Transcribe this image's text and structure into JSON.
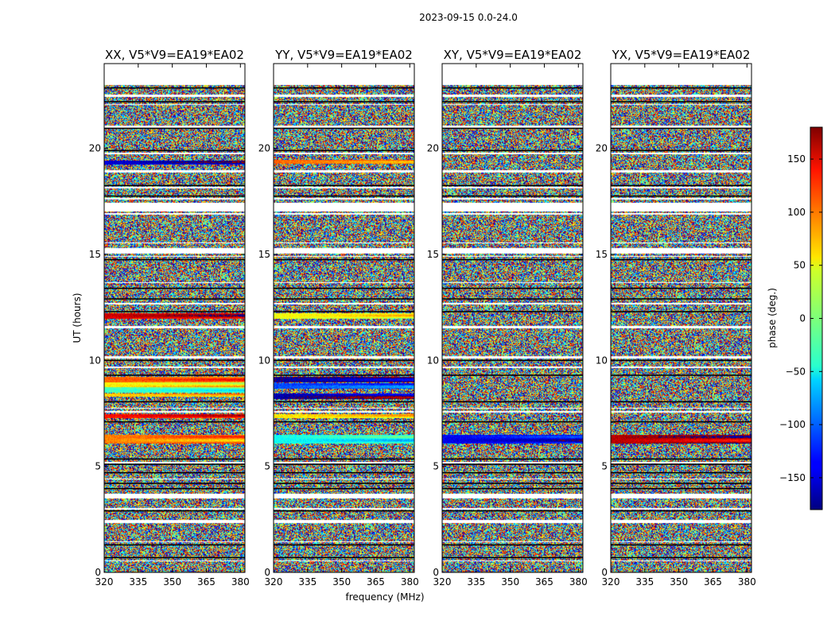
{
  "chart_data": {
    "type": "heatmap",
    "suptitle": "2023-09-15 0.0-24.0",
    "xlabel": "frequency (MHz)",
    "ylabel": "UT (hours)",
    "xlim": [
      320,
      382
    ],
    "ylim": [
      0,
      24
    ],
    "xticks": [
      320,
      335,
      350,
      365,
      380
    ],
    "yticks": [
      0,
      5,
      10,
      15,
      20
    ],
    "colorbar": {
      "label": "phase (deg.)",
      "range": [
        -180,
        180
      ],
      "ticks": [
        150,
        100,
        50,
        0,
        -50,
        -100,
        -150
      ],
      "tick_labels": [
        "150",
        "100",
        "50",
        "0",
        "−50",
        "−100",
        "−150"
      ],
      "colormap": "jet"
    },
    "data_extent_hours": [
      0,
      23
    ],
    "panels": [
      {
        "title": "XX, V5*V9=EA19*EA02",
        "show_ylabel": true,
        "show_xlabel": false,
        "coherent_bands": [
          {
            "y0": 19.25,
            "y1": 19.45,
            "phase": -150
          },
          {
            "y0": 12.0,
            "y1": 12.25,
            "phase": 150
          },
          {
            "y0": 9.0,
            "y1": 9.25,
            "phase": 100
          },
          {
            "y0": 8.75,
            "y1": 9.0,
            "phase": 50
          },
          {
            "y0": 8.5,
            "y1": 8.75,
            "phase": -20
          },
          {
            "y0": 8.3,
            "y1": 8.45,
            "phase": 60
          },
          {
            "y0": 7.3,
            "y1": 7.5,
            "phase": 130
          },
          {
            "y0": 6.1,
            "y1": 6.5,
            "phase": 90
          }
        ]
      },
      {
        "title": "YY, V5*V9=EA19*EA02",
        "show_ylabel": false,
        "show_xlabel": true,
        "coherent_bands": [
          {
            "y0": 19.3,
            "y1": 19.5,
            "phase": 100
          },
          {
            "y0": 12.0,
            "y1": 12.25,
            "phase": 40
          },
          {
            "y0": 9.0,
            "y1": 9.25,
            "phase": -170
          },
          {
            "y0": 8.7,
            "y1": 8.95,
            "phase": -110
          },
          {
            "y0": 8.2,
            "y1": 8.45,
            "phase": -165
          },
          {
            "y0": 7.3,
            "y1": 7.5,
            "phase": 50
          },
          {
            "y0": 6.1,
            "y1": 6.5,
            "phase": -40
          }
        ]
      },
      {
        "title": "XY, V5*V9=EA19*EA02",
        "show_ylabel": false,
        "show_xlabel": false,
        "coherent_bands": [
          {
            "y0": 6.1,
            "y1": 6.5,
            "phase": -140
          }
        ]
      },
      {
        "title": "YX, V5*V9=EA19*EA02",
        "show_ylabel": false,
        "show_xlabel": false,
        "coherent_bands": [
          {
            "y0": 6.1,
            "y1": 6.5,
            "phase": 160
          }
        ]
      }
    ],
    "flagged_gaps_hours": [
      [
        22.45,
        22.55
      ],
      [
        22.05,
        22.12
      ],
      [
        21.0,
        21.08
      ],
      [
        19.75,
        19.82
      ],
      [
        18.9,
        19.0
      ],
      [
        18.15,
        18.22
      ],
      [
        17.6,
        17.7
      ],
      [
        17.05,
        17.45
      ],
      [
        16.9,
        16.97
      ],
      [
        15.55,
        15.6
      ],
      [
        15.05,
        15.3
      ],
      [
        14.9,
        14.96
      ],
      [
        13.65,
        13.7
      ],
      [
        12.65,
        12.72
      ],
      [
        11.55,
        11.65
      ],
      [
        10.1,
        10.22
      ],
      [
        9.65,
        9.72
      ],
      [
        7.75,
        7.8
      ],
      [
        7.55,
        7.62
      ],
      [
        5.15,
        5.25
      ],
      [
        4.4,
        4.46
      ],
      [
        3.5,
        3.75
      ],
      [
        3.0,
        3.05
      ],
      [
        2.35,
        2.5
      ],
      [
        1.45,
        1.5
      ],
      [
        0.55,
        0.6
      ]
    ],
    "black_lines_hours": [
      22.85,
      22.2,
      20.95,
      19.9,
      18.25,
      17.75,
      14.75,
      13.4,
      12.9,
      12.3,
      10.0,
      9.3,
      8.05,
      7.1,
      5.35,
      5.1,
      4.7,
      4.2,
      3.95,
      2.9,
      1.3,
      0.7
    ]
  }
}
